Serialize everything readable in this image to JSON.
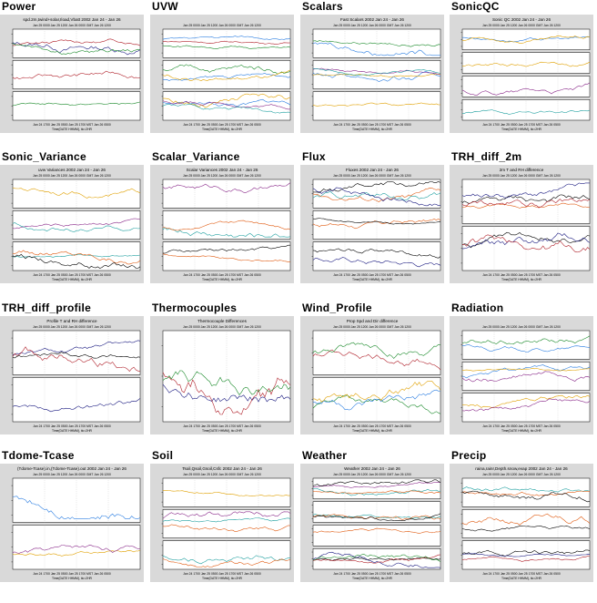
{
  "cells": [
    {
      "title": "Power",
      "caption": "spd.2m,twind+solar,Iload,Vbatt 2002 Jan 24 - Jan 26"
    },
    {
      "title": "UVW",
      "caption": ""
    },
    {
      "title": "Scalars",
      "caption": "Fast Scalars 2002 Jan 24 - Jan 26"
    },
    {
      "title": "SonicQC",
      "caption": "Sonic QC 2002 Jan 24 - Jan 26"
    },
    {
      "title": "Sonic_Variance",
      "caption": "uvw Variances 2002 Jan 24 - Jan 26"
    },
    {
      "title": "Scalar_Variance",
      "caption": "Scalar Variances 2002 Jan 24 - Jan 26"
    },
    {
      "title": "Flux",
      "caption": "Fluxes 2002 Jan 24 - Jan 26"
    },
    {
      "title": "TRH_diff_2m",
      "caption": "2m T and RH difference"
    },
    {
      "title": "TRH_diff_profile",
      "caption": "Profile T and RH difference"
    },
    {
      "title": "Thermocouples",
      "caption": "Thermocouple Differences"
    },
    {
      "title": "Wind_Profile",
      "caption": "Prop Spd and Dir difference"
    },
    {
      "title": "Radiation",
      "caption": ""
    },
    {
      "title": "Tdome-Tcase",
      "caption": "(Tdome-Tcase).in,(Tdome-Tcase).out 2002 Jan 24 - Jan 26"
    },
    {
      "title": "Soil",
      "caption": "Tsoil,Qsoil,Gsoil,Csfc 2002 Jan 24 - Jan 26"
    },
    {
      "title": "Weather",
      "caption": "Weather 2002 Jan 24 - Jan 26"
    },
    {
      "title": "Precip",
      "caption": "raina,rainr,Depth.snow,evap 2002 Jan 24 - Jan 26"
    }
  ],
  "axis": {
    "top_ticks": "Jan 25 0000   Jan 25 1200   Jan 26 0000 GMT   Jan 26 1200",
    "bottom_ticks": "Jan 24 1700   Jan 25 0500   Jan 25 1700 MST   Jan 26 0500",
    "bottom_label": "Time(DATE HHMM), tic=2HR"
  },
  "colors": {
    "background": "#ffffff",
    "thumbnail": "#d9d9d9",
    "plot_area": "#ffffff"
  }
}
